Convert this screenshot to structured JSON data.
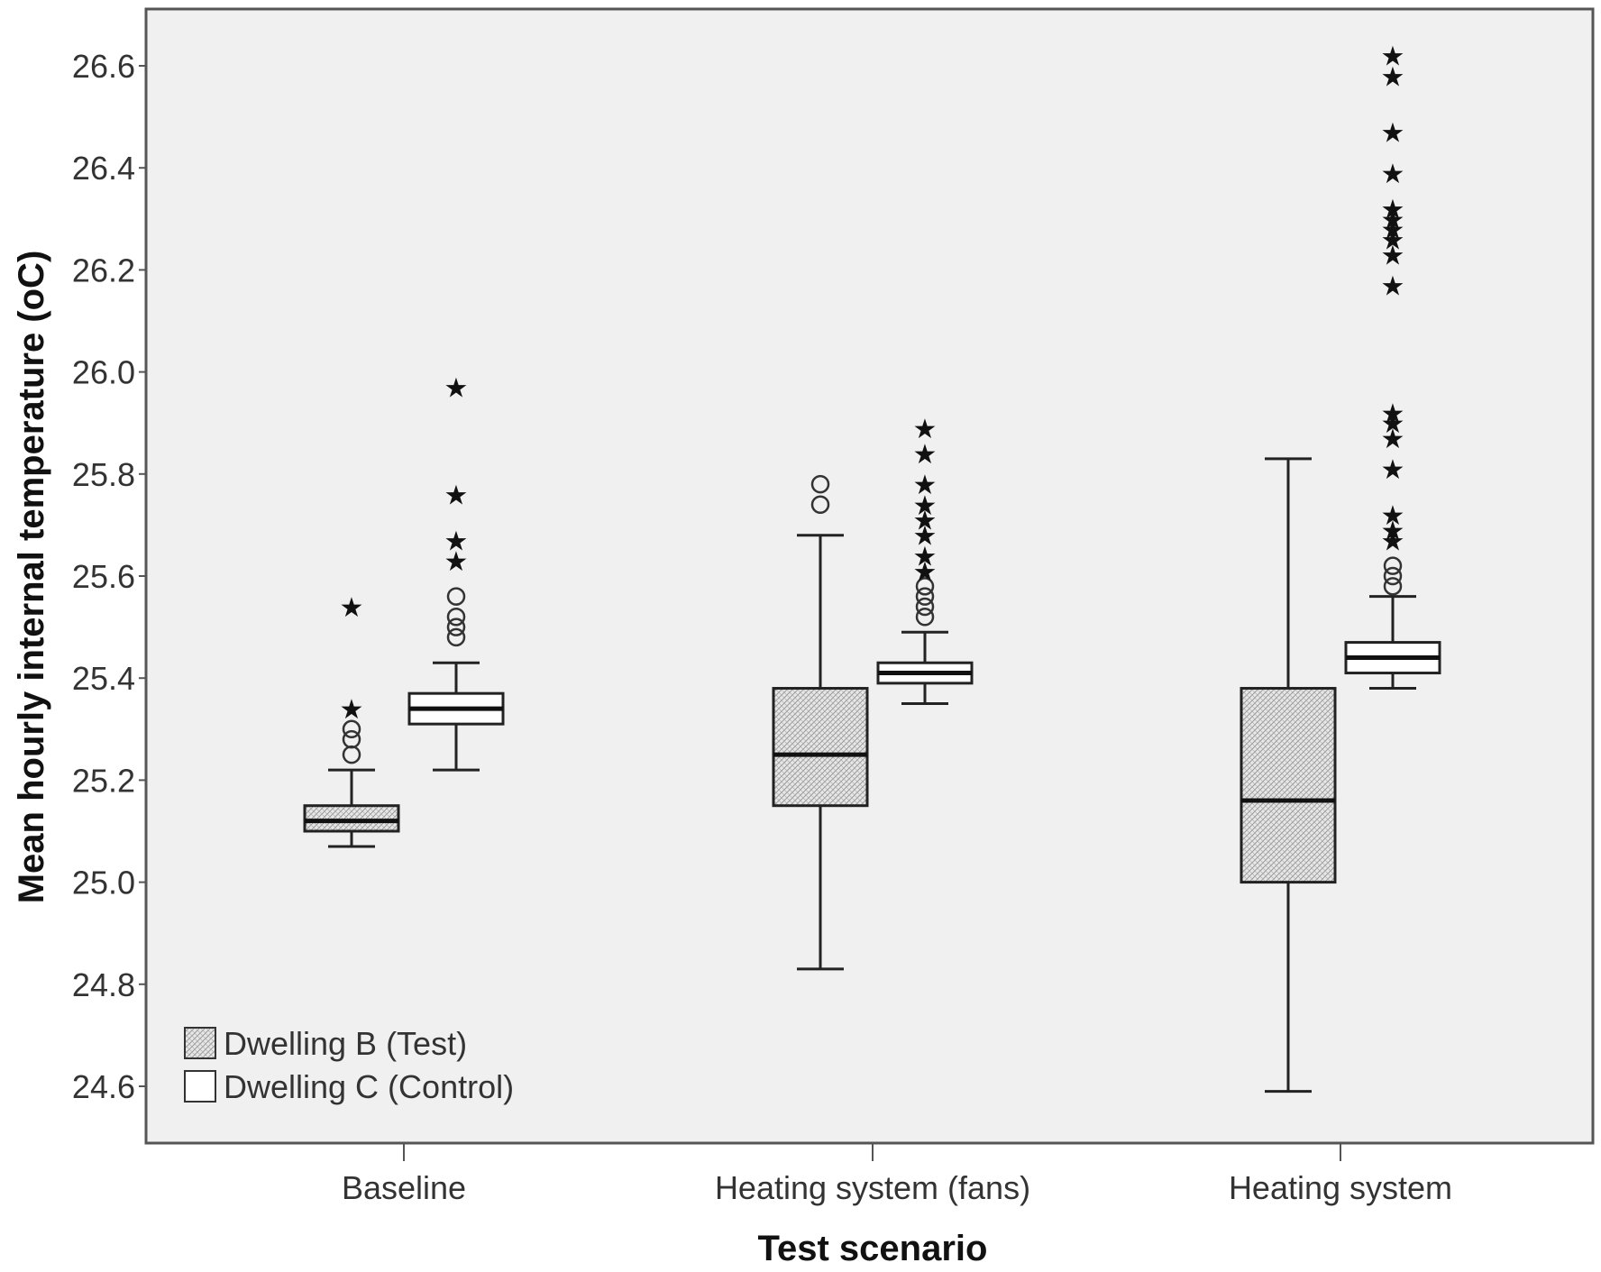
{
  "chart_data": {
    "type": "boxplot",
    "title": "",
    "xlabel": "Test scenario",
    "ylabel": "Mean hourly internal temperature (oC)",
    "ylim": [
      24.55,
      26.72
    ],
    "yticks": [
      "24.6",
      "24.8",
      "25.0",
      "25.2",
      "25.4",
      "25.6",
      "25.8",
      "26.0",
      "26.2",
      "26.4",
      "26.6"
    ],
    "categories": [
      "Baseline",
      "Heating system (fans)",
      "Heating system"
    ],
    "legend_position": "bottom-left",
    "grid": false,
    "series": [
      {
        "name": "Dwelling B (Test)",
        "fill": "hatched-grey",
        "boxes": [
          {
            "category": "Baseline",
            "whisker_low": 25.07,
            "q1": 25.1,
            "median": 25.12,
            "q3": 25.15,
            "whisker_high": 25.22,
            "outliers_circle": [
              25.25,
              25.28,
              25.3
            ],
            "outliers_star": [
              25.34,
              25.54
            ]
          },
          {
            "category": "Heating system (fans)",
            "whisker_low": 24.83,
            "q1": 25.15,
            "median": 25.25,
            "q3": 25.38,
            "whisker_high": 25.68,
            "outliers_circle": [
              25.74,
              25.78
            ],
            "outliers_star": []
          },
          {
            "category": "Heating system",
            "whisker_low": 24.59,
            "q1": 25.0,
            "median": 25.16,
            "q3": 25.38,
            "whisker_high": 25.83,
            "outliers_circle": [],
            "outliers_star": []
          }
        ]
      },
      {
        "name": "Dwelling C (Control)",
        "fill": "white",
        "boxes": [
          {
            "category": "Baseline",
            "whisker_low": 25.22,
            "q1": 25.31,
            "median": 25.34,
            "q3": 25.37,
            "whisker_high": 25.43,
            "outliers_circle": [
              25.48,
              25.5,
              25.52,
              25.56
            ],
            "outliers_star": [
              25.63,
              25.67,
              25.76,
              25.97
            ]
          },
          {
            "category": "Heating system (fans)",
            "whisker_low": 25.35,
            "q1": 25.39,
            "median": 25.41,
            "q3": 25.43,
            "whisker_high": 25.49,
            "outliers_circle": [
              25.52,
              25.54,
              25.56,
              25.58
            ],
            "outliers_star": [
              25.61,
              25.64,
              25.68,
              25.71,
              25.74,
              25.78,
              25.84,
              25.89
            ]
          },
          {
            "category": "Heating system",
            "whisker_low": 25.38,
            "q1": 25.41,
            "median": 25.44,
            "q3": 25.47,
            "whisker_high": 25.56,
            "outliers_circle": [
              25.58,
              25.6,
              25.62
            ],
            "outliers_star": [
              25.67,
              25.69,
              25.72,
              25.81,
              25.87,
              25.9,
              25.92,
              26.17,
              26.23,
              26.26,
              26.28,
              26.3,
              26.32,
              26.39,
              26.47,
              26.58,
              26.62
            ]
          }
        ]
      }
    ]
  }
}
